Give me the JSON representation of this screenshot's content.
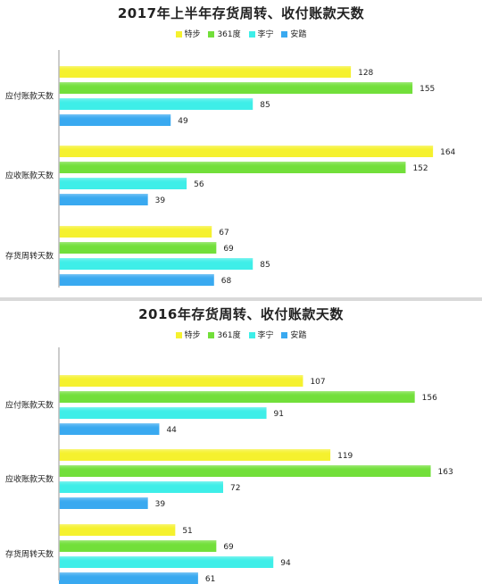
{
  "colors": {
    "特步": "#f5f12e",
    "361度": "#72df3a",
    "李宁": "#3eeee8",
    "安踏": "#39a9f0",
    "axis": "#bbbbbb",
    "divider": "#d9d9d9"
  },
  "chart_data": [
    {
      "type": "bar",
      "orientation": "horizontal",
      "title": "2017年上半年存货周转、收付账款天数",
      "categories": [
        "应付账款天数",
        "应收账款天数",
        "存货周转天数"
      ],
      "series": [
        {
          "name": "特步",
          "values": [
            128,
            164,
            67
          ]
        },
        {
          "name": "361度",
          "values": [
            155,
            152,
            69
          ]
        },
        {
          "name": "李宁",
          "values": [
            85,
            56,
            85
          ]
        },
        {
          "name": "安踏",
          "values": [
            49,
            39,
            68
          ]
        }
      ],
      "xlim": [
        0,
        180
      ],
      "legend_position": "top-center",
      "grid": false
    },
    {
      "type": "bar",
      "orientation": "horizontal",
      "title": "2016年存货周转、收付账款天数",
      "categories": [
        "应付账款天数",
        "应收账款天数",
        "存货周转天数"
      ],
      "series": [
        {
          "name": "特步",
          "values": [
            107,
            119,
            51
          ]
        },
        {
          "name": "361度",
          "values": [
            156,
            163,
            69
          ]
        },
        {
          "name": "李宁",
          "values": [
            91,
            72,
            94
          ]
        },
        {
          "name": "安踏",
          "values": [
            44,
            39,
            61
          ]
        }
      ],
      "xlim": [
        0,
        180
      ],
      "legend_position": "top-center",
      "grid": false
    }
  ]
}
